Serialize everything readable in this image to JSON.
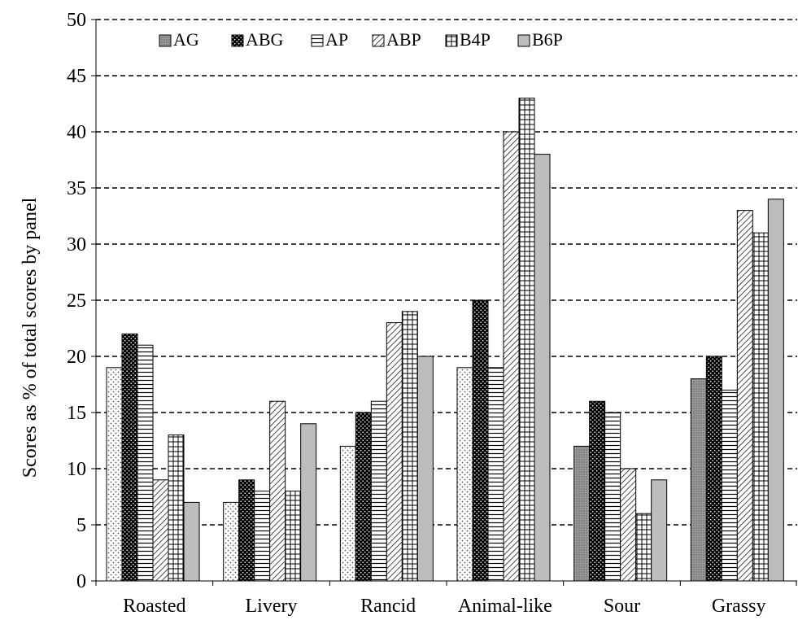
{
  "chart_data": {
    "type": "bar",
    "title": "",
    "xlabel": "",
    "ylabel": "Scores as % of total scores by panel",
    "ylim": [
      0,
      50
    ],
    "yticks": [
      0,
      5,
      10,
      15,
      20,
      25,
      30,
      35,
      40,
      45,
      50
    ],
    "grid": "horizontal dashed",
    "legend_position": "top",
    "categories": [
      "Roasted",
      "Livery",
      "Rancid",
      "Animal-like",
      "Sour",
      "Grassy"
    ],
    "series": [
      {
        "name": "AG",
        "values": [
          19,
          7,
          12,
          19,
          12,
          18
        ],
        "pattern": "gray-dots"
      },
      {
        "name": "ABG",
        "values": [
          22,
          9,
          15,
          25,
          16,
          20
        ],
        "pattern": "black-dots"
      },
      {
        "name": "AP",
        "values": [
          21,
          8,
          16,
          19,
          15,
          17
        ],
        "pattern": "horizontal-lines"
      },
      {
        "name": "ABP",
        "values": [
          9,
          16,
          23,
          40,
          10,
          33
        ],
        "pattern": "diagonal-lines"
      },
      {
        "name": "B4P",
        "values": [
          13,
          8,
          24,
          43,
          6,
          31
        ],
        "pattern": "grid"
      },
      {
        "name": "B6P",
        "values": [
          7,
          14,
          20,
          38,
          9,
          34
        ],
        "pattern": "solid-gray"
      }
    ]
  }
}
